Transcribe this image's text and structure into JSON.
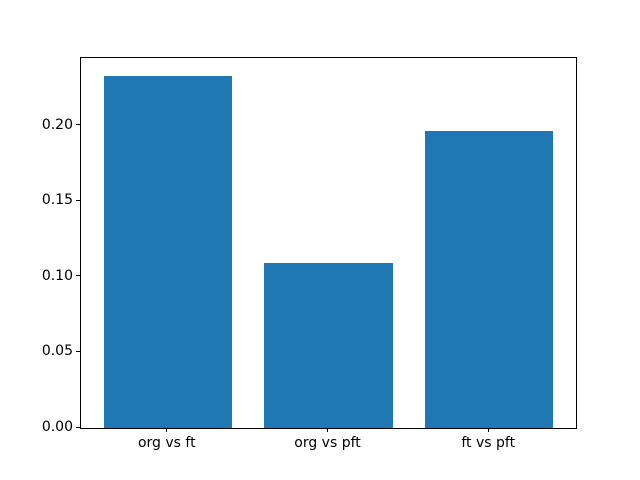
{
  "chart_data": {
    "type": "bar",
    "title": "",
    "xlabel": "",
    "ylabel": "",
    "categories": [
      "org vs ft",
      "org vs pft",
      "ft vs pft"
    ],
    "values": [
      0.233,
      0.109,
      0.197
    ],
    "bar_centers": [
      0,
      1,
      2
    ],
    "bar_width": 0.8,
    "xlim": [
      -0.54,
      2.54
    ],
    "ylim": [
      0,
      0.245
    ],
    "yticks": [
      {
        "value": 0.0,
        "label": "0.00"
      },
      {
        "value": 0.05,
        "label": "0.05"
      },
      {
        "value": 0.1,
        "label": "0.10"
      },
      {
        "value": 0.15,
        "label": "0.15"
      },
      {
        "value": 0.2,
        "label": "0.20"
      }
    ],
    "grid": false,
    "legend": null,
    "bar_color": "#1f77b4",
    "axes_color": "#000000",
    "background_color": "#ffffff"
  }
}
